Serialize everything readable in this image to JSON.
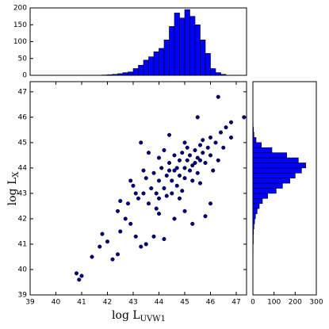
{
  "chart_data": [
    {
      "type": "scatter",
      "xlabel": "log L",
      "xlabel_sub": "UVW1",
      "ylabel": "log L",
      "ylabel_sub": "X",
      "color": "#000080",
      "x": [
        40.8,
        40.9,
        41.0,
        41.4,
        41.7,
        41.8,
        42.0,
        42.2,
        42.4,
        42.5,
        42.4,
        42.7,
        42.5,
        42.9,
        43.1,
        43.3,
        43.5,
        43.8,
        44.2,
        44.0,
        44.6,
        45.0,
        45.3,
        45.8,
        46.0,
        45.5,
        46.3,
        47.3,
        46.8,
        44.4,
        43.3,
        43.6,
        42.9,
        43.0,
        42.8,
        43.2,
        43.4,
        43.5,
        43.6,
        43.7,
        43.8,
        43.9,
        44.0,
        44.0,
        44.1,
        44.2,
        44.3,
        44.3,
        44.4,
        44.5,
        44.5,
        44.6,
        44.6,
        44.7,
        44.7,
        44.8,
        44.8,
        44.9,
        44.9,
        45.0,
        45.0,
        45.1,
        45.1,
        45.2,
        45.2,
        45.3,
        45.3,
        45.4,
        45.4,
        45.5,
        45.5,
        45.6,
        45.6,
        45.7,
        45.7,
        45.8,
        45.9,
        46.0,
        46.0,
        46.2,
        46.3,
        46.4,
        46.6,
        46.1,
        44.0,
        43.4,
        44.2,
        43.9,
        44.8,
        45.6,
        46.5,
        46.8,
        43.1,
        44.4,
        45.0
      ],
      "y": [
        39.85,
        39.6,
        39.75,
        40.5,
        40.9,
        41.4,
        41.1,
        40.4,
        40.6,
        41.5,
        42.3,
        42.0,
        42.7,
        41.8,
        41.3,
        40.9,
        41.0,
        41.3,
        41.2,
        42.2,
        42.0,
        42.3,
        41.8,
        42.1,
        42.6,
        46.0,
        46.8,
        46.0,
        45.8,
        45.3,
        45.0,
        44.6,
        43.5,
        43.3,
        42.6,
        42.8,
        43.0,
        43.6,
        42.6,
        43.2,
        43.8,
        43.0,
        43.5,
        42.8,
        44.0,
        43.2,
        43.7,
        42.9,
        44.2,
        43.5,
        43.0,
        43.9,
        44.5,
        43.3,
        44.0,
        43.7,
        44.3,
        43.1,
        44.6,
        44.0,
        43.6,
        44.3,
        44.8,
        43.9,
        44.5,
        44.1,
        43.5,
        44.7,
        44.2,
        44.4,
        43.8,
        44.9,
        44.3,
        44.6,
        45.1,
        44.2,
        44.8,
        45.2,
        44.5,
        45.0,
        44.3,
        45.4,
        45.6,
        43.9,
        44.4,
        43.9,
        44.7,
        42.4,
        42.8,
        43.4,
        44.8,
        45.2,
        43.0,
        43.9,
        45.0
      ],
      "xlim": [
        39,
        47.4
      ],
      "ylim": [
        39,
        47.4
      ],
      "xticks": [
        39,
        40,
        41,
        42,
        43,
        44,
        45,
        46,
        47
      ],
      "yticks": [
        39,
        40,
        41,
        42,
        43,
        44,
        45,
        46,
        47
      ]
    },
    {
      "type": "histogram",
      "color": "#0000ff",
      "bins": [
        41.8,
        42.0,
        42.2,
        42.4,
        42.6,
        42.8,
        43.0,
        43.2,
        43.4,
        43.6,
        43.8,
        44.0,
        44.2,
        44.4,
        44.6,
        44.8,
        45.0,
        45.2,
        45.4,
        45.6,
        45.8,
        46.0,
        46.2,
        46.4,
        46.6
      ],
      "counts": [
        1,
        2,
        3,
        5,
        8,
        10,
        20,
        30,
        45,
        55,
        70,
        80,
        105,
        145,
        185,
        170,
        195,
        175,
        150,
        105,
        65,
        20,
        8,
        3
      ],
      "xlim": [
        39,
        47.4
      ],
      "ylim": [
        0,
        200
      ],
      "yticks": [
        0,
        50,
        100,
        150,
        200
      ]
    },
    {
      "type": "histogram",
      "orientation": "horizontal",
      "color": "#0000ff",
      "bins": [
        40.6,
        40.8,
        41.0,
        41.2,
        41.4,
        41.6,
        41.8,
        42.0,
        42.2,
        42.4,
        42.6,
        42.8,
        43.0,
        43.2,
        43.4,
        43.6,
        43.8,
        44.0,
        44.2,
        44.4,
        44.6,
        44.8,
        45.0,
        45.2,
        45.4,
        45.6,
        45.8
      ],
      "counts": [
        1,
        1,
        2,
        2,
        3,
        5,
        8,
        12,
        20,
        30,
        45,
        70,
        110,
        140,
        175,
        200,
        230,
        250,
        215,
        160,
        90,
        40,
        15,
        5,
        3,
        1
      ],
      "xlim": [
        0,
        300
      ],
      "ylim": [
        39,
        47.4
      ],
      "xticks": [
        0,
        100,
        200,
        300
      ]
    }
  ]
}
